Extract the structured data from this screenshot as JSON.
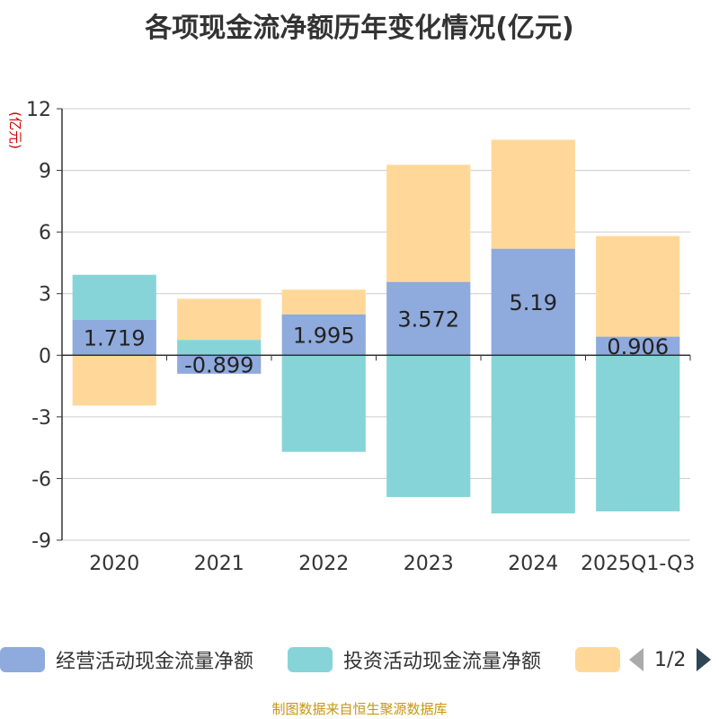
{
  "title": "各项现金流净额历年变化情况(亿元)",
  "source": "制图数据来自恒生聚源数据库",
  "pager": {
    "text": "1/2"
  },
  "colors": {
    "operating": "#8faadc",
    "investing": "#86d4d8",
    "financing": "#ffd899"
  },
  "chart_data": {
    "type": "bar",
    "stacked": true,
    "ylabel": "(亿元)",
    "ylim": [
      -9,
      12
    ],
    "yticks": [
      12,
      9,
      6,
      3,
      0,
      -3,
      -6,
      -9
    ],
    "categories": [
      "2020",
      "2021",
      "2022",
      "2023",
      "2024",
      "2025Q1-Q3"
    ],
    "series": [
      {
        "name": "经营活动现金流量净额",
        "values": [
          1.719,
          -0.899,
          1.995,
          3.572,
          5.19,
          0.906
        ],
        "color": "#8faadc",
        "labels": true
      },
      {
        "name": "投资活动现金流量净额",
        "values": [
          2.2,
          0.75,
          -4.7,
          -6.9,
          -7.7,
          -7.6
        ],
        "color": "#86d4d8",
        "labels": false
      },
      {
        "name": "",
        "values": [
          -2.45,
          2.0,
          1.2,
          5.7,
          5.3,
          4.9
        ],
        "color": "#ffd899",
        "labels": false
      }
    ],
    "dataLabels": [
      "1.719",
      "-0.899",
      "1.995",
      "3.572",
      "5.19",
      "0.906"
    ]
  }
}
